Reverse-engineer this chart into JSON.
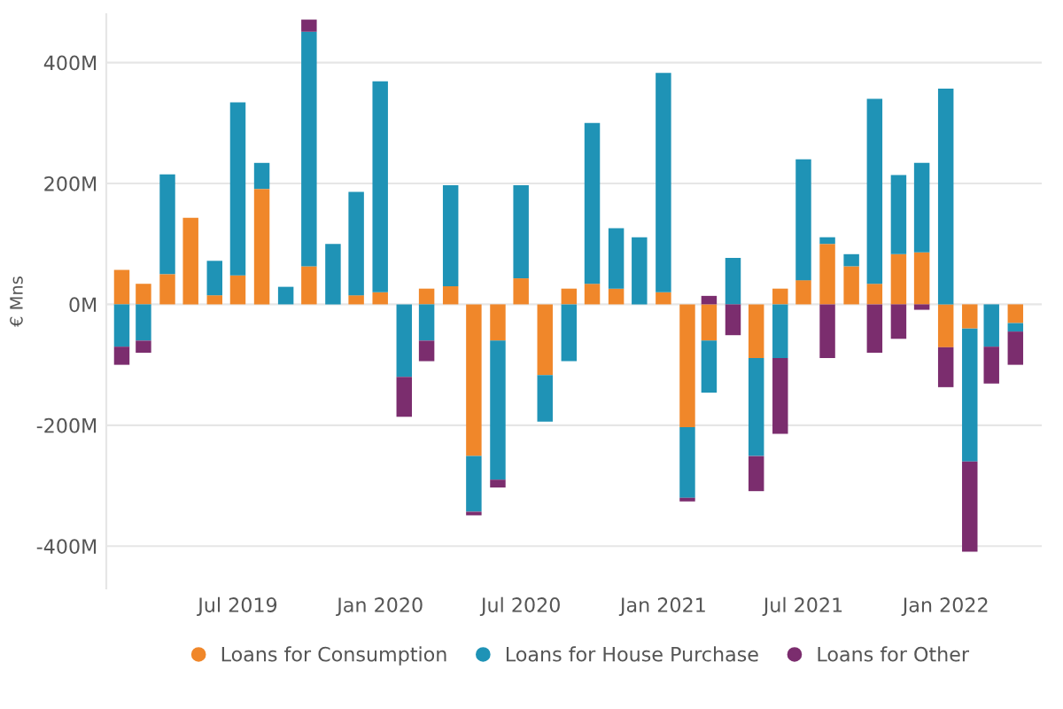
{
  "chart_data": {
    "type": "bar",
    "stacked": true,
    "ylabel": "€ Mns",
    "x": [
      "2019-02",
      "2019-03",
      "2019-04",
      "2019-05",
      "2019-06",
      "2019-07",
      "2019-08",
      "2019-09",
      "2019-10",
      "2019-11",
      "2019-12",
      "2020-01",
      "2020-02",
      "2020-03",
      "2020-04",
      "2020-05",
      "2020-06",
      "2020-07",
      "2020-08",
      "2020-09",
      "2020-10",
      "2020-11",
      "2020-12",
      "2021-01",
      "2021-02",
      "2021-03",
      "2021-04",
      "2021-05",
      "2021-06",
      "2021-07",
      "2021-08",
      "2021-09",
      "2021-10",
      "2021-11",
      "2021-12",
      "2022-01",
      "2022-02",
      "2022-03",
      "2022-04"
    ],
    "series": [
      {
        "name": "Loans for Consumption",
        "color": "#f0872a",
        "values": [
          57,
          34,
          50,
          143,
          15,
          48,
          191,
          null,
          63,
          null,
          15,
          20,
          null,
          26,
          30,
          -251,
          -60,
          43,
          -117,
          26,
          34,
          26,
          null,
          20,
          -203,
          -60,
          null,
          -89,
          26,
          40,
          100,
          63,
          34,
          83,
          86,
          -71,
          -40,
          null,
          -31
        ]
      },
      {
        "name": "Loans for House Purchase",
        "color": "#1f93b6",
        "values": [
          -70,
          -60,
          165,
          null,
          57,
          286,
          43,
          29,
          388,
          100,
          171,
          349,
          -120,
          -60,
          167,
          -92,
          -230,
          154,
          -77,
          -94,
          266,
          100,
          111,
          363,
          -117,
          -86,
          77,
          -162,
          -89,
          200,
          11,
          20,
          306,
          131,
          148,
          357,
          -220,
          -70,
          -14
        ]
      },
      {
        "name": "Loans for Other",
        "color": "#7b2d6e",
        "values": [
          -30,
          -20,
          null,
          null,
          null,
          null,
          null,
          null,
          20,
          null,
          null,
          null,
          -66,
          -34,
          null,
          -6,
          -13,
          null,
          null,
          null,
          null,
          null,
          null,
          null,
          -6,
          14,
          -51,
          -58,
          -125,
          null,
          -89,
          null,
          -80,
          -57,
          -9,
          -66,
          -149,
          -61,
          -55
        ]
      }
    ],
    "xlim": [
      "2019-01-12",
      "2022-05-05"
    ],
    "xticks": [
      {
        "value": "2019-07",
        "label": "Jul 2019"
      },
      {
        "value": "2020-01",
        "label": "Jan 2020"
      },
      {
        "value": "2020-07",
        "label": "Jul 2020"
      },
      {
        "value": "2021-01",
        "label": "Jan 2021"
      },
      {
        "value": "2021-07",
        "label": "Jul 2021"
      },
      {
        "value": "2022-01",
        "label": "Jan 2022"
      }
    ],
    "ylim": [
      -470,
      480
    ],
    "yticks": [
      {
        "value": -400,
        "label": "-400M"
      },
      {
        "value": -200,
        "label": "-200M"
      },
      {
        "value": 0,
        "label": "0M"
      },
      {
        "value": 200,
        "label": "200M"
      },
      {
        "value": 400,
        "label": "400M"
      }
    ],
    "grid": "y",
    "legend": "bottom"
  }
}
